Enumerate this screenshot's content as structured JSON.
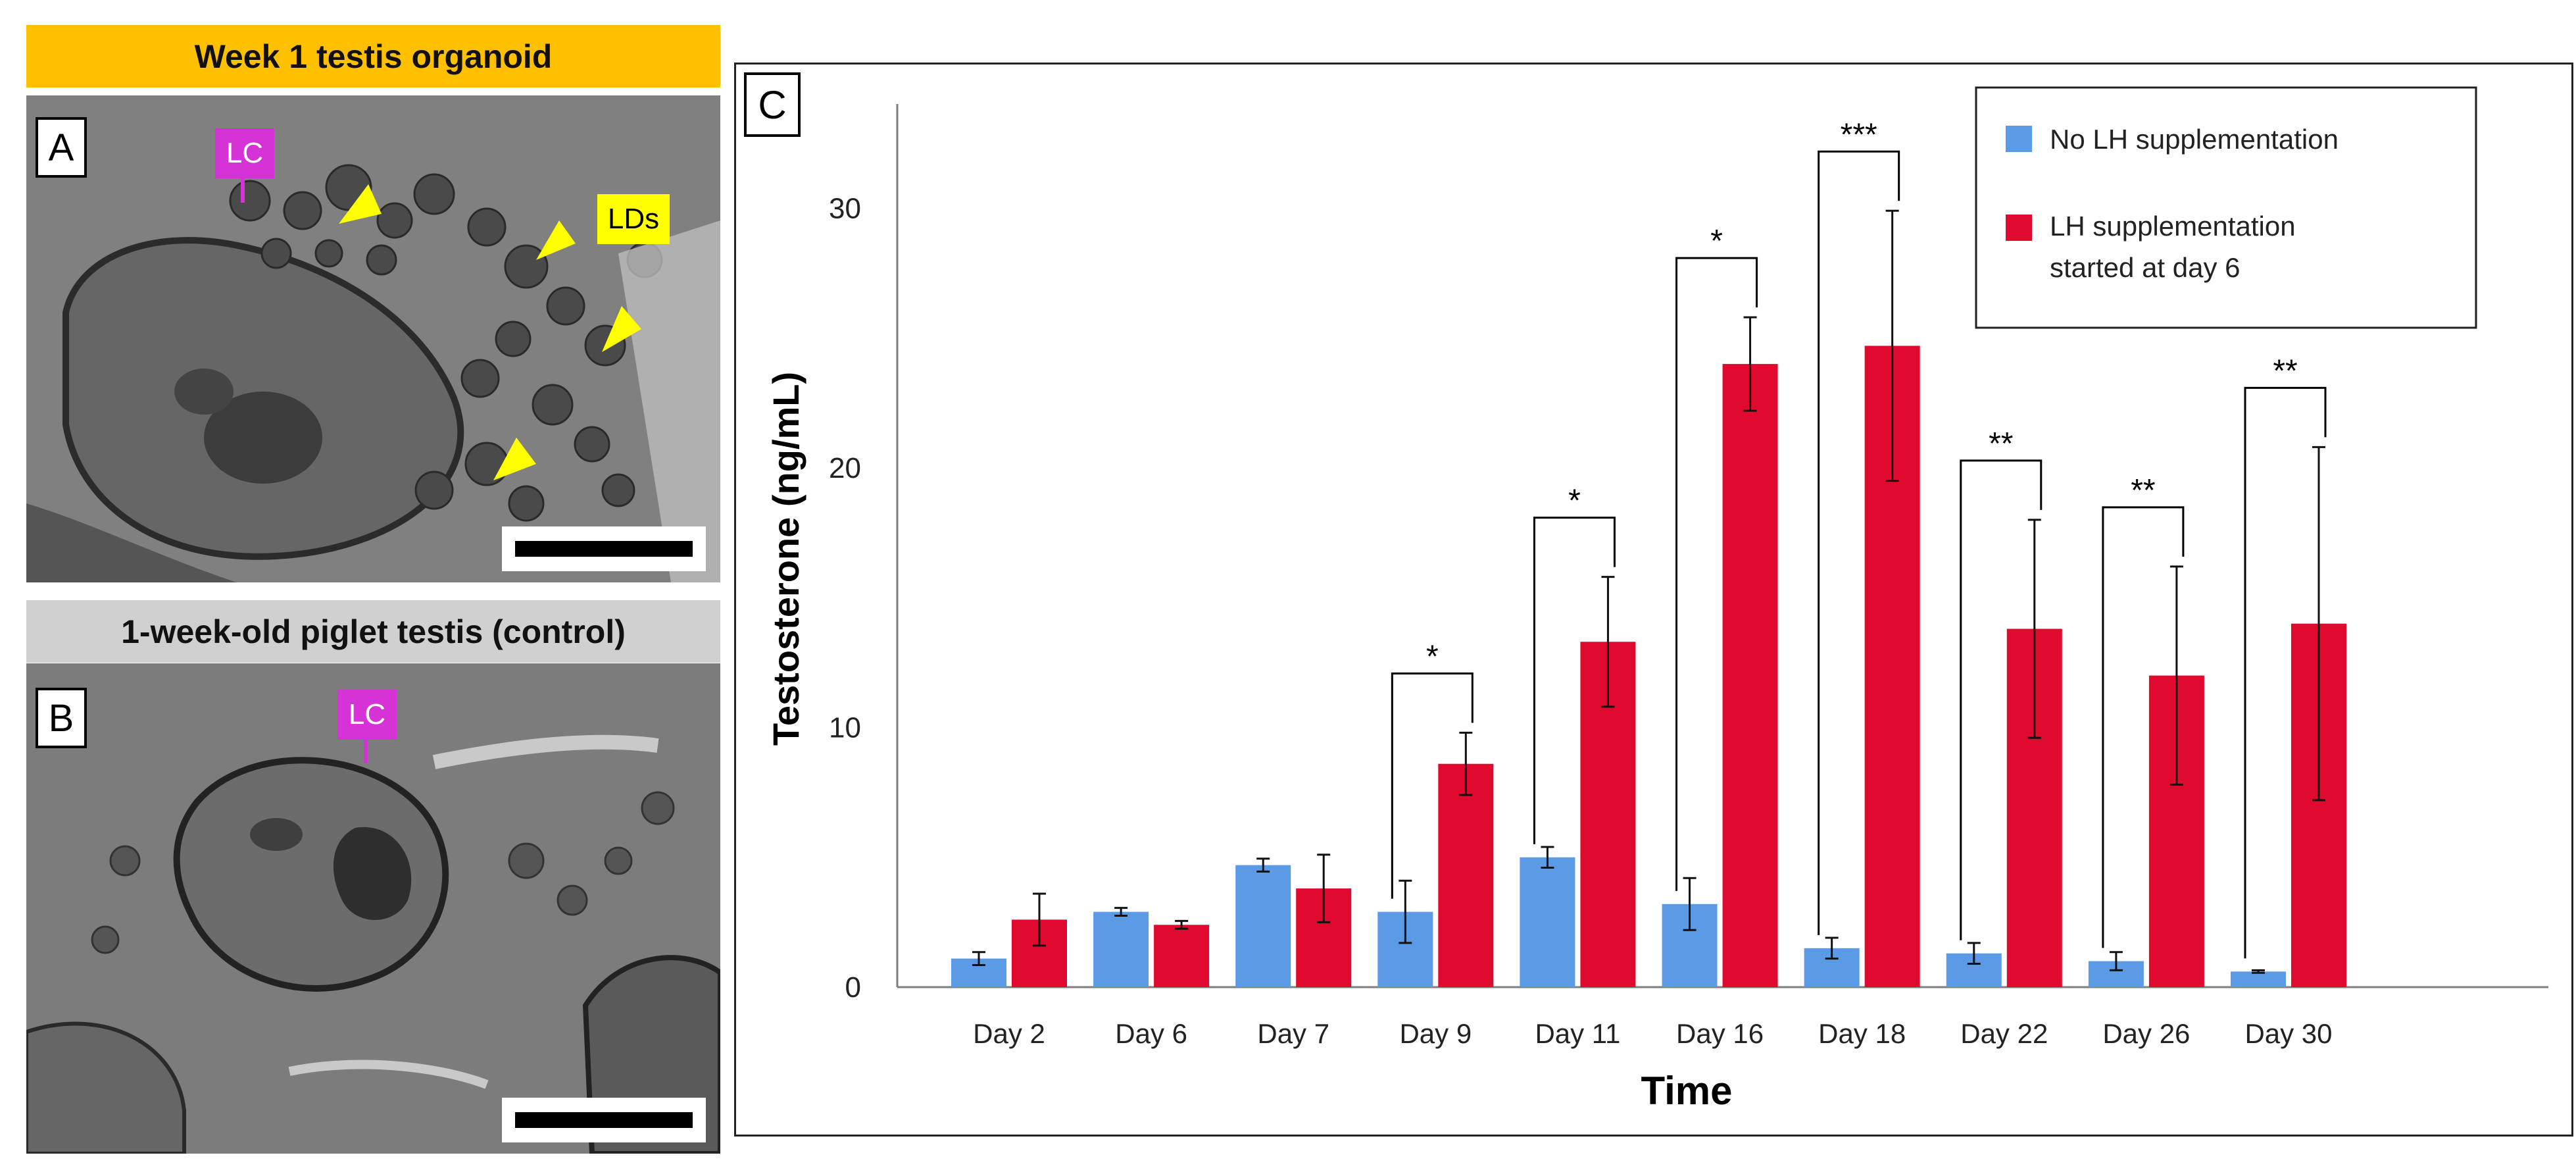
{
  "panel_a": {
    "banner": "Week 1 testis organoid",
    "banner_color": "#FFC000",
    "label": "A",
    "tag_lc": "LC",
    "tag_lds": "LDs",
    "lc_color": "#D633D6",
    "lds_color": "#FFFF00",
    "arrow_color": "#FFFF00"
  },
  "panel_b": {
    "banner": "1-week-old piglet testis (control)",
    "banner_color": "#D0D0D0",
    "label": "B",
    "tag_lc": "LC"
  },
  "panel_c": {
    "label": "C"
  },
  "chart_data": {
    "type": "bar",
    "title": "",
    "xlabel": "Time",
    "ylabel": "Testosterone (ng/mL)",
    "ylim": [
      0,
      33
    ],
    "yticks": [
      0,
      10,
      20,
      30
    ],
    "categories": [
      "Day 2",
      "Day 6",
      "Day 7",
      "Day 9",
      "Day 11",
      "Day 16",
      "Day 18",
      "Day 22",
      "Day 26",
      "Day 30"
    ],
    "series": [
      {
        "name": "No LH supplementation",
        "color": "#5B9BE6",
        "values": [
          1.1,
          2.9,
          4.7,
          2.9,
          5.0,
          3.2,
          1.5,
          1.3,
          1.0,
          0.6
        ],
        "errors": [
          0.25,
          0.15,
          0.25,
          1.2,
          0.4,
          1.0,
          0.4,
          0.4,
          0.35,
          0.05
        ]
      },
      {
        "name": "LH supplementation started at day 6",
        "color": "#E0092E",
        "values": [
          2.6,
          2.4,
          3.8,
          8.6,
          13.3,
          24.0,
          24.7,
          13.8,
          12.0,
          14.0
        ],
        "errors": [
          1.0,
          0.15,
          1.3,
          1.2,
          2.5,
          1.8,
          5.2,
          4.2,
          4.2,
          6.8
        ]
      }
    ],
    "significance": [
      {
        "category": "Day 9",
        "label": "*"
      },
      {
        "category": "Day 11",
        "label": "*"
      },
      {
        "category": "Day 16",
        "label": "*"
      },
      {
        "category": "Day 18",
        "label": "***"
      },
      {
        "category": "Day 22",
        "label": "**"
      },
      {
        "category": "Day 26",
        "label": "**"
      },
      {
        "category": "Day 30",
        "label": "**"
      }
    ],
    "legend_position": "top-right"
  }
}
